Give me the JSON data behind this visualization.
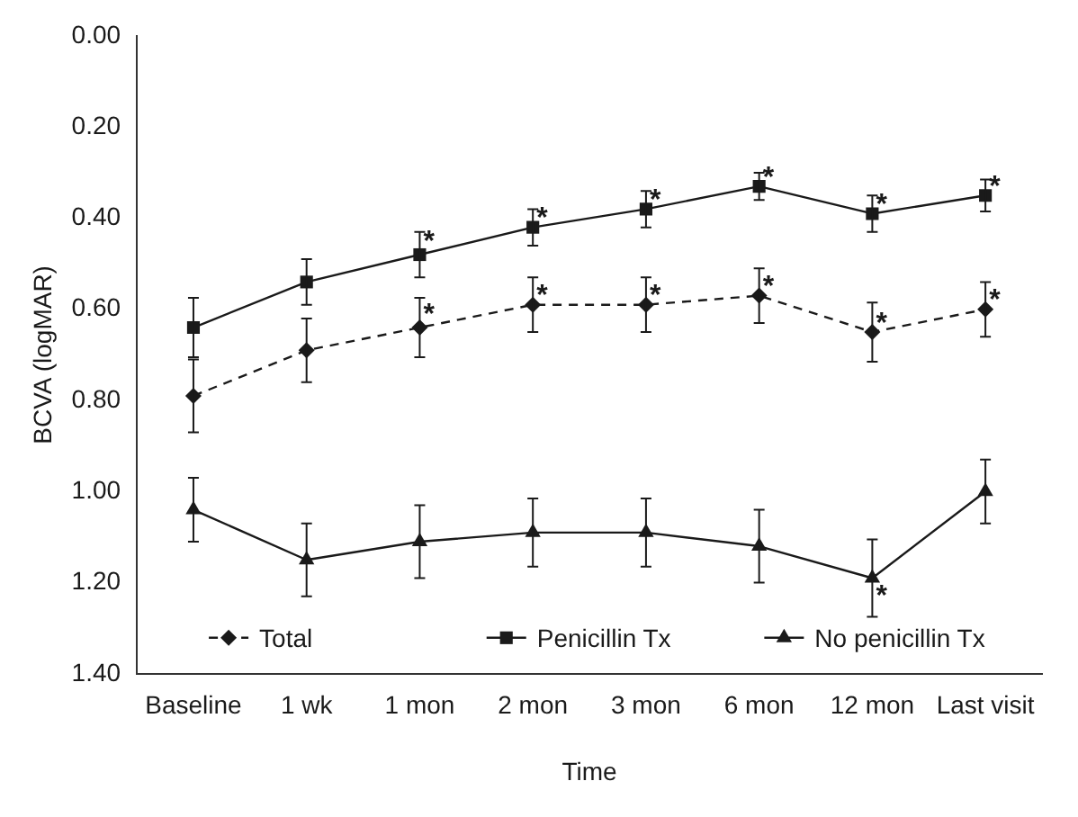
{
  "chart_data": {
    "type": "line",
    "xlabel": "Time",
    "ylabel": "BCVA (logMAR)",
    "categories": [
      "Baseline",
      "1 wk",
      "1 mon",
      "2 mon",
      "3 mon",
      "6 mon",
      "12 mon",
      "Last visit"
    ],
    "series": [
      {
        "name": "Total",
        "color": "#1a1a1a",
        "marker": "diamond",
        "line_style": "dashed",
        "values": [
          0.79,
          0.69,
          0.64,
          0.59,
          0.59,
          0.57,
          0.65,
          0.6
        ],
        "errors": [
          0.08,
          0.07,
          0.065,
          0.06,
          0.06,
          0.06,
          0.065,
          0.06
        ]
      },
      {
        "name": "Penicillin Tx",
        "color": "#1a1a1a",
        "marker": "square",
        "line_style": "solid",
        "values": [
          0.64,
          0.54,
          0.48,
          0.42,
          0.38,
          0.33,
          0.39,
          0.35
        ],
        "errors": [
          0.065,
          0.05,
          0.05,
          0.04,
          0.04,
          0.03,
          0.04,
          0.035
        ]
      },
      {
        "name": "No penicillin Tx",
        "color": "#1a1a1a",
        "marker": "triangle",
        "line_style": "solid",
        "values": [
          1.04,
          1.15,
          1.11,
          1.09,
          1.09,
          1.12,
          1.19,
          1.0
        ],
        "errors": [
          0.07,
          0.08,
          0.08,
          0.075,
          0.075,
          0.08,
          0.085,
          0.07
        ]
      }
    ],
    "ylim": [
      1.4,
      0
    ],
    "yticks": [
      {
        "value": 0,
        "label": "0.00"
      },
      {
        "value": 0.2,
        "label": "0.20"
      },
      {
        "value": 0.4,
        "label": "0.40"
      },
      {
        "value": 0.6,
        "label": "0.60"
      },
      {
        "value": 0.8,
        "label": "0.80"
      },
      {
        "value": 1.0,
        "label": "1.00"
      },
      {
        "value": 1.2,
        "label": "1.20"
      },
      {
        "value": 1.4,
        "label": "1.40"
      }
    ],
    "grid": false,
    "legend": "bottom",
    "annotations": [
      {
        "text": "*",
        "x": "1 mon",
        "y": 0.44
      },
      {
        "text": "*",
        "x": "2 mon",
        "y": 0.39
      },
      {
        "text": "*",
        "x": "3 mon",
        "y": 0.35
      },
      {
        "text": "*",
        "x": "6 mon",
        "y": 0.3
      },
      {
        "text": "*",
        "x": "12 mon",
        "y": 0.36
      },
      {
        "text": "*",
        "x": "Last visit",
        "y": 0.32
      },
      {
        "text": "*",
        "x": "1 mon",
        "y": 0.6
      },
      {
        "text": "*",
        "x": "2 mon",
        "y": 0.56
      },
      {
        "text": "*",
        "x": "3 mon",
        "y": 0.56
      },
      {
        "text": "*",
        "x": "6 mon",
        "y": 0.54
      },
      {
        "text": "*",
        "x": "12 mon",
        "y": 0.62
      },
      {
        "text": "*",
        "x": "Last visit",
        "y": 0.57
      },
      {
        "text": "*",
        "x": "12 mon",
        "y": 1.22
      }
    ]
  }
}
